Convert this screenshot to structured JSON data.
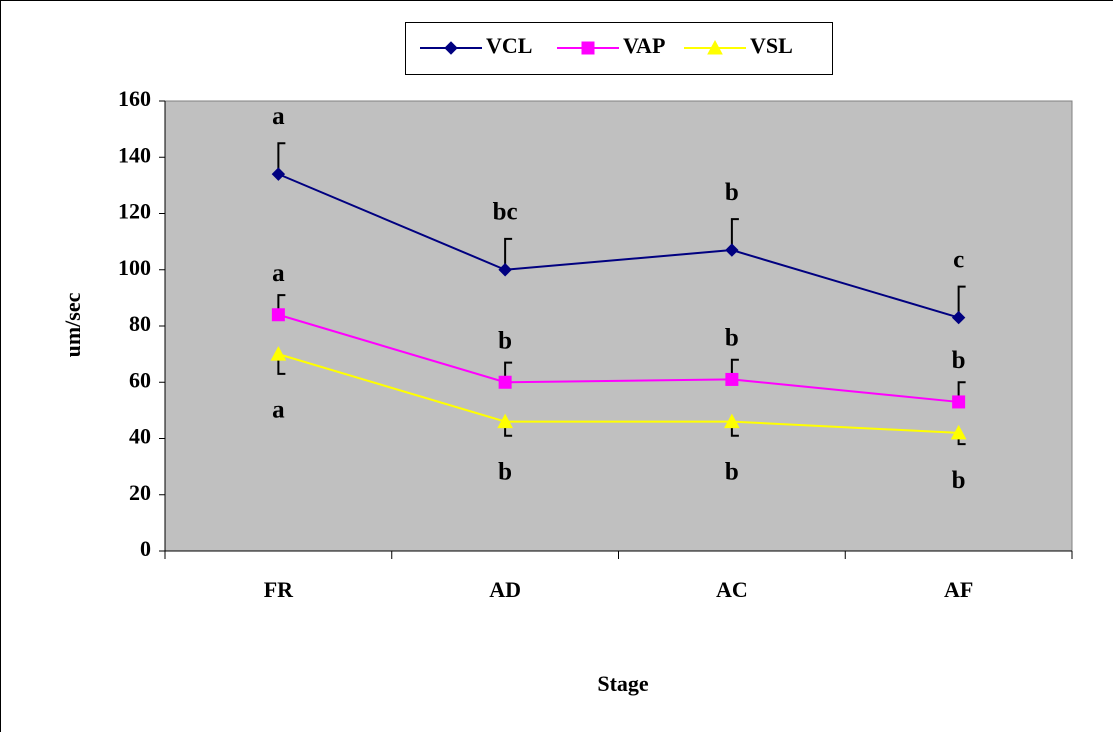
{
  "chart_data": {
    "type": "line",
    "x_label": "Stage",
    "y_label": "um/sec",
    "categories": [
      "FR",
      "AD",
      "AC",
      "AF"
    ],
    "series": [
      {
        "name": "VCL",
        "color": "#000080",
        "marker": "diamond",
        "values": [
          134,
          100,
          107,
          83
        ],
        "errors": [
          11,
          11,
          11,
          11
        ],
        "error_side": "up",
        "labels": [
          "a",
          "bc",
          "b",
          "c"
        ]
      },
      {
        "name": "VAP",
        "color": "#ff00ff",
        "marker": "square",
        "values": [
          84,
          60,
          61,
          53
        ],
        "errors": [
          7,
          7,
          7,
          7
        ],
        "error_side": "up",
        "labels": [
          "a",
          "b",
          "b",
          "b"
        ]
      },
      {
        "name": "VSL",
        "color": "#ffff00",
        "marker": "triangle",
        "values": [
          70,
          46,
          46,
          42
        ],
        "errors": [
          7,
          5,
          5,
          4
        ],
        "error_side": "down",
        "labels": [
          "a",
          "b",
          "b",
          "b"
        ]
      }
    ],
    "ylim": [
      0,
      160
    ],
    "yticks": [
      0,
      20,
      40,
      60,
      80,
      100,
      120,
      140,
      160
    ],
    "plot_background": "#c0c0c0",
    "legend": "top"
  }
}
